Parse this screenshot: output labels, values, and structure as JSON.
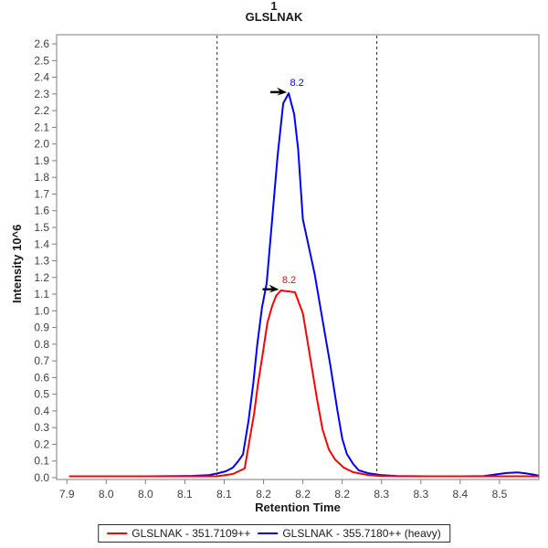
{
  "title": {
    "replicate": "1",
    "peptide": "GLSLNAK"
  },
  "axes": {
    "x_title": "Retention Time",
    "y_title": "Intensity 10^6"
  },
  "legend": {
    "items": [
      {
        "id": "light",
        "label": "GLSLNAK - 351.7109++",
        "color": "#ff0000"
      },
      {
        "id": "heavy",
        "label": "GLSLNAK - 355.7180++ (heavy)",
        "color": "#0000ff"
      }
    ]
  },
  "chart_data": {
    "type": "line",
    "title": "1 GLSLNAK",
    "xlabel": "Retention Time",
    "ylabel": "Intensity 10^6",
    "xlim": [
      7.887,
      8.5
    ],
    "ylim": [
      -0.011,
      2.655
    ],
    "grid": false,
    "legend_position": "bottom",
    "x_ticks": {
      "values": [
        7.9,
        7.95,
        8.0,
        8.05,
        8.1,
        8.15,
        8.2,
        8.25,
        8.3,
        8.35,
        8.4,
        8.45
      ],
      "labels": [
        "7.9",
        "8.0",
        "8.0",
        "8.1",
        "8.1",
        "8.2",
        "8.2",
        "8.2",
        "8.3",
        "8.3",
        "8.4",
        "8.5"
      ]
    },
    "y_ticks": {
      "labels": [
        "0.0",
        "0.1",
        "0.2",
        "0.3",
        "0.4",
        "0.5",
        "0.6",
        "0.7",
        "0.8",
        "0.9",
        "1.0",
        "1.1",
        "1.2",
        "1.3",
        "1.4",
        "1.5",
        "1.6",
        "1.7",
        "1.8",
        "1.9",
        "2.0",
        "2.1",
        "2.2",
        "2.3",
        "2.4",
        "2.5",
        "2.6"
      ]
    },
    "peak_boundaries": [
      8.091,
      8.294
    ],
    "series": [
      {
        "id": "light",
        "name": "GLSLNAK - 351.7109++",
        "color": "#ff0000",
        "peak_rt_label": "8.2",
        "points": [
          [
            7.903,
            0.008
          ],
          [
            7.95,
            0.008
          ],
          [
            8.0,
            0.008
          ],
          [
            8.05,
            0.008
          ],
          [
            8.091,
            0.008
          ],
          [
            8.111,
            0.022
          ],
          [
            8.126,
            0.055
          ],
          [
            8.132,
            0.219
          ],
          [
            8.138,
            0.383
          ],
          [
            8.143,
            0.564
          ],
          [
            8.149,
            0.744
          ],
          [
            8.155,
            0.93
          ],
          [
            8.161,
            1.029
          ],
          [
            8.166,
            1.09
          ],
          [
            8.172,
            1.122
          ],
          [
            8.19,
            1.111
          ],
          [
            8.2,
            0.985
          ],
          [
            8.209,
            0.728
          ],
          [
            8.218,
            0.471
          ],
          [
            8.225,
            0.29
          ],
          [
            8.233,
            0.17
          ],
          [
            8.241,
            0.109
          ],
          [
            8.252,
            0.06
          ],
          [
            8.264,
            0.033
          ],
          [
            8.283,
            0.016
          ],
          [
            8.3,
            0.01
          ],
          [
            8.35,
            0.008
          ],
          [
            8.4,
            0.008
          ],
          [
            8.45,
            0.008
          ],
          [
            8.5,
            0.008
          ]
        ]
      },
      {
        "id": "heavy",
        "name": "GLSLNAK - 355.7180++ (heavy)",
        "color": "#0000ff",
        "peak_rt_label": "8.2",
        "points": [
          [
            7.903,
            0.008
          ],
          [
            7.95,
            0.008
          ],
          [
            8.0,
            0.008
          ],
          [
            8.04,
            0.009
          ],
          [
            8.06,
            0.011
          ],
          [
            8.08,
            0.015
          ],
          [
            8.091,
            0.025
          ],
          [
            8.102,
            0.038
          ],
          [
            8.111,
            0.06
          ],
          [
            8.118,
            0.1
          ],
          [
            8.124,
            0.14
          ],
          [
            8.131,
            0.345
          ],
          [
            8.137,
            0.564
          ],
          [
            8.142,
            0.794
          ],
          [
            8.148,
            1.018
          ],
          [
            8.154,
            1.166
          ],
          [
            8.161,
            1.549
          ],
          [
            8.168,
            1.932
          ],
          [
            8.175,
            2.244
          ],
          [
            8.182,
            2.304
          ],
          [
            8.189,
            2.178
          ],
          [
            8.194,
            1.97
          ],
          [
            8.2,
            1.549
          ],
          [
            8.215,
            1.221
          ],
          [
            8.225,
            0.947
          ],
          [
            8.235,
            0.673
          ],
          [
            8.244,
            0.4
          ],
          [
            8.25,
            0.235
          ],
          [
            8.256,
            0.142
          ],
          [
            8.264,
            0.082
          ],
          [
            8.271,
            0.044
          ],
          [
            8.283,
            0.027
          ],
          [
            8.299,
            0.016
          ],
          [
            8.32,
            0.01
          ],
          [
            8.36,
            0.008
          ],
          [
            8.4,
            0.008
          ],
          [
            8.43,
            0.01
          ],
          [
            8.447,
            0.02
          ],
          [
            8.459,
            0.028
          ],
          [
            8.473,
            0.031
          ],
          [
            8.482,
            0.027
          ],
          [
            8.494,
            0.018
          ],
          [
            8.5,
            0.012
          ]
        ]
      }
    ],
    "annotations": [
      {
        "series": 0,
        "label": "8.2",
        "rt": 8.172,
        "intensity": 1.122
      },
      {
        "series": 1,
        "label": "8.2",
        "rt": 8.182,
        "intensity": 2.304
      }
    ]
  },
  "style": {
    "frame_color": "#7e7e7e",
    "tick_label_color": "#3f3f3f",
    "boundary_color": "#2b2b2b",
    "annotation_arrow_color": "#000000"
  }
}
